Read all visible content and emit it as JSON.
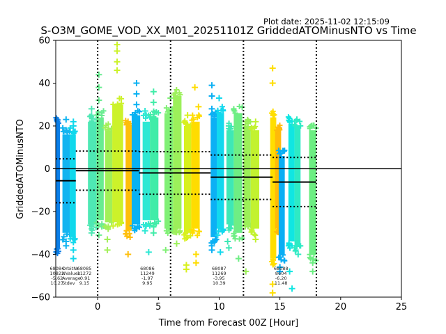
{
  "chart_data": {
    "type": "scatter",
    "title": "S-O3M_GOME_VOD_XX_M01_20251101Z GriddedATOMinusNTO vs Time",
    "plot_date": "Plot date: 2025-11-02 12:15:09",
    "xlabel": "Time from Forecast 00Z [Hour]",
    "ylabel": "GriddedATOMinusNTO",
    "xlim": [
      -3.45,
      25
    ],
    "ylim": [
      -60,
      60
    ],
    "x_ticks": [
      0,
      5,
      10,
      15,
      20,
      25
    ],
    "x_tick_labels": [
      "0",
      "5",
      "10",
      "15",
      "20",
      "25"
    ],
    "y_ticks": [
      -60,
      -40,
      -20,
      0,
      20,
      40,
      60
    ],
    "y_tick_labels": [
      "−60",
      "−40",
      "−20",
      "0",
      "20",
      "40",
      "60"
    ],
    "grid": false,
    "legend": "none",
    "zero_line": 0,
    "orbit_boundaries": [
      0,
      6,
      12,
      18
    ],
    "stats_header": [
      "OrbitNr",
      "NValues",
      "Average",
      "Stdev"
    ],
    "orbits": [
      {
        "orbit": "68084",
        "nvalues": "10822",
        "average": -5.62,
        "average_label": "-5.62",
        "stdev": 10.27,
        "stdev_label": "10.27",
        "x_range": [
          -3.45,
          -1.8
        ],
        "label_x": -3.0
      },
      {
        "orbit": "68085",
        "nvalues": "11272",
        "average": -0.91,
        "average_label": "-0.91",
        "stdev": 9.15,
        "stdev_label": "9.15",
        "x_range": [
          -1.8,
          3.4
        ],
        "label_x": -1.6
      },
      {
        "orbit": "68086",
        "nvalues": "11249",
        "average": -1.97,
        "average_label": "-1.97",
        "stdev": 9.95,
        "stdev_label": "9.95",
        "x_range": [
          3.4,
          9.3
        ],
        "label_x": 3.4
      },
      {
        "orbit": "68087",
        "nvalues": "11269",
        "average": -3.95,
        "average_label": "-3.95",
        "stdev": 10.39,
        "stdev_label": "10.39",
        "x_range": [
          9.3,
          14.4
        ],
        "label_x": 9.3
      },
      {
        "orbit": "68088",
        "nvalues": "8604",
        "average": -6.2,
        "average_label": "-6.20",
        "stdev": 11.48,
        "stdev_label": "11.48",
        "x_range": [
          14.4,
          18.0
        ],
        "label_x": 14.4
      }
    ],
    "bands": [
      {
        "x": [
          -3.45,
          -3.1
        ],
        "y": [
          -37,
          21
        ],
        "color": "#0a7ee8",
        "outliers": []
      },
      {
        "x": [
          -2.9,
          -2.3
        ],
        "y": [
          -30,
          16
        ],
        "color": "#12b4f0",
        "outliers": [
          [
            -2.6,
            23
          ],
          [
            -2.6,
            18
          ],
          [
            -2.6,
            -34
          ],
          [
            -2.6,
            -36
          ]
        ]
      },
      {
        "x": [
          -2.3,
          -1.8
        ],
        "y": [
          -32,
          16
        ],
        "color": "#10d8ec",
        "outliers": [
          [
            -2.0,
            22
          ],
          [
            -2.0,
            20
          ],
          [
            -2.0,
            -38
          ],
          [
            -2.0,
            -42
          ]
        ]
      },
      {
        "x": [
          -0.8,
          -0.1
        ],
        "y": [
          -26,
          22
        ],
        "color": "#4ee8b4",
        "outliers": [
          [
            -0.5,
            25
          ],
          [
            -0.5,
            28
          ],
          [
            -0.5,
            -30
          ]
        ]
      },
      {
        "x": [
          -0.1,
          0.5
        ],
        "y": [
          -24,
          24
        ],
        "color": "#68ec90",
        "outliers": [
          [
            0.1,
            44
          ],
          [
            0.1,
            38
          ],
          [
            0.1,
            32
          ],
          [
            0.1,
            -31
          ]
        ]
      },
      {
        "x": [
          0.6,
          1.2
        ],
        "y": [
          -25,
          18
        ],
        "color": "#a2f058",
        "outliers": [
          [
            0.8,
            -33
          ],
          [
            0.8,
            -38
          ]
        ]
      },
      {
        "x": [
          1.2,
          2.1
        ],
        "y": [
          -25,
          30
        ],
        "color": "#ccf22a",
        "outliers": [
          [
            1.6,
            58
          ],
          [
            1.6,
            55
          ],
          [
            1.6,
            50
          ],
          [
            1.6,
            46
          ],
          [
            1.6,
            -22
          ]
        ]
      },
      {
        "x": [
          2.3,
          2.8
        ],
        "y": [
          -29,
          20
        ],
        "color": "#ffbe0a",
        "outliers": [
          [
            2.5,
            -40
          ],
          [
            2.5,
            22
          ]
        ]
      },
      {
        "x": [
          2.8,
          3.5
        ],
        "y": [
          -26,
          25
        ],
        "color": "#08b2f2",
        "outliers": [
          [
            3.2,
            40
          ],
          [
            3.2,
            35
          ],
          [
            3.2,
            30
          ],
          [
            3.2,
            -28
          ]
        ]
      },
      {
        "x": [
          3.7,
          4.3
        ],
        "y": [
          -24,
          22
        ],
        "color": "#2ee8d4",
        "outliers": [
          [
            3.9,
            27
          ],
          [
            3.9,
            -29
          ],
          [
            4.2,
            -39
          ]
        ]
      },
      {
        "x": [
          4.3,
          5.0
        ],
        "y": [
          -24,
          24
        ],
        "color": "#40eca8",
        "outliers": [
          [
            4.6,
            36
          ],
          [
            4.6,
            31
          ],
          [
            4.6,
            -30
          ]
        ]
      },
      {
        "x": [
          5.5,
          6.2
        ],
        "y": [
          -28,
          26
        ],
        "color": "#80f076",
        "outliers": [
          [
            5.6,
            -38
          ],
          [
            6.0,
            33
          ]
        ]
      },
      {
        "x": [
          6.2,
          6.9
        ],
        "y": [
          -28,
          34
        ],
        "color": "#9cf05a",
        "outliers": [
          [
            6.5,
            -35
          ]
        ]
      },
      {
        "x": [
          7.1,
          7.7
        ],
        "y": [
          -30,
          20
        ],
        "color": "#d8f01c",
        "outliers": [
          [
            7.3,
            -47
          ],
          [
            7.3,
            -45
          ],
          [
            7.4,
            25
          ]
        ]
      },
      {
        "x": [
          7.7,
          8.4
        ],
        "y": [
          -28,
          22
        ],
        "color": "#ffdc00",
        "outliers": [
          [
            8.0,
            38
          ],
          [
            8.3,
            29
          ],
          [
            8.1,
            -40
          ],
          [
            8.1,
            -44
          ]
        ]
      },
      {
        "x": [
          9.3,
          9.8
        ],
        "y": [
          -32,
          24
        ],
        "color": "#0cb0f4",
        "outliers": [
          [
            9.4,
            39
          ],
          [
            9.4,
            34
          ],
          [
            9.4,
            28
          ],
          [
            9.4,
            -36
          ],
          [
            9.4,
            -38
          ]
        ]
      },
      {
        "x": [
          9.8,
          10.4
        ],
        "y": [
          -28,
          26
        ],
        "color": "#12d8ee",
        "outliers": [
          [
            10.0,
            33
          ],
          [
            10.1,
            -39
          ]
        ]
      },
      {
        "x": [
          10.6,
          11.2
        ],
        "y": [
          -26,
          18
        ],
        "color": "#3ee8b6",
        "outliers": [
          [
            10.8,
            20
          ],
          [
            10.7,
            -34
          ],
          [
            10.8,
            -37
          ]
        ]
      },
      {
        "x": [
          11.2,
          11.9
        ],
        "y": [
          -30,
          26
        ],
        "color": "#6eee84",
        "outliers": [
          [
            11.6,
            -42
          ]
        ]
      },
      {
        "x": [
          12.0,
          12.6
        ],
        "y": [
          -26,
          20
        ],
        "color": "#9cf058",
        "outliers": [
          [
            12.2,
            -48
          ],
          [
            12.4,
            18
          ]
        ]
      },
      {
        "x": [
          12.6,
          13.3
        ],
        "y": [
          -28,
          18
        ],
        "color": "#c2f230",
        "outliers": [
          [
            13.0,
            22
          ],
          [
            13.0,
            -33
          ]
        ]
      },
      {
        "x": [
          14.2,
          14.7
        ],
        "y": [
          -42,
          24
        ],
        "color": "#ffde00",
        "outliers": [
          [
            14.4,
            47
          ],
          [
            14.4,
            40
          ],
          [
            14.4,
            -54
          ],
          [
            14.4,
            -58
          ]
        ]
      },
      {
        "x": [
          14.6,
          15.1
        ],
        "y": [
          -28,
          18
        ],
        "color": "#ffba0a",
        "outliers": []
      },
      {
        "x": [
          14.9,
          15.4
        ],
        "y": [
          -40,
          6
        ],
        "color": "#0aaef4",
        "outliers": [
          [
            15.0,
            7
          ],
          [
            15.0,
            -46
          ],
          [
            15.0,
            -48
          ]
        ]
      },
      {
        "x": [
          15.7,
          16.2
        ],
        "y": [
          -34,
          21
        ],
        "color": "#10e6e2",
        "outliers": [
          [
            16.0,
            -56
          ],
          [
            15.8,
            -48
          ]
        ]
      },
      {
        "x": [
          16.2,
          16.7
        ],
        "y": [
          -36,
          20
        ],
        "color": "#2eeac4",
        "outliers": [
          [
            16.4,
            23
          ],
          [
            16.5,
            -40
          ]
        ]
      },
      {
        "x": [
          17.4,
          18.0
        ],
        "y": [
          -40,
          18
        ],
        "color": "#6cee82",
        "outliers": [
          [
            17.6,
            20
          ],
          [
            17.7,
            -44
          ],
          [
            17.7,
            -48
          ]
        ]
      }
    ]
  }
}
